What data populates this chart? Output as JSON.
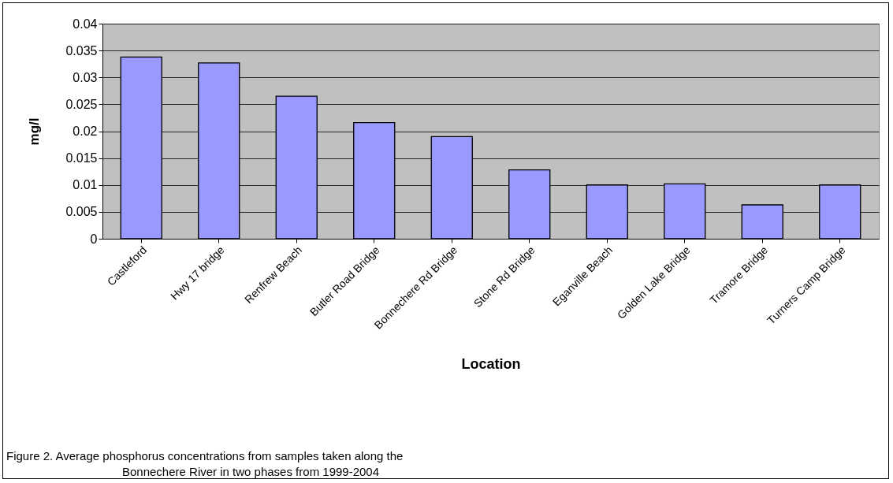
{
  "chart_data": {
    "type": "bar",
    "xlabel": "Location",
    "ylabel": "mg/l",
    "categories": [
      "Castleford",
      "Hwy 17 bridge",
      "Renfrew Beach",
      "Butler Road Bridge",
      "Bonnechere Rd Bridge",
      "Stone Rd Bridge",
      "Eganville Beach",
      "Golden Lake Bridge",
      "Tramore Bridge",
      "Turners Camp Bridge"
    ],
    "values": [
      0.0338,
      0.0327,
      0.0265,
      0.0216,
      0.019,
      0.0128,
      0.01,
      0.0102,
      0.0063,
      0.01
    ],
    "color": "#9999ff",
    "ylim": [
      0,
      0.04
    ],
    "yticks": [
      0,
      0.005,
      0.01,
      0.015,
      0.02,
      0.025,
      0.03,
      0.035,
      0.04
    ],
    "grid": "y",
    "annotations": [
      "Figure 2. Average phosphorus concentrations from samples taken along the",
      "Bonnechere River in two phases from 1999-2004"
    ]
  }
}
